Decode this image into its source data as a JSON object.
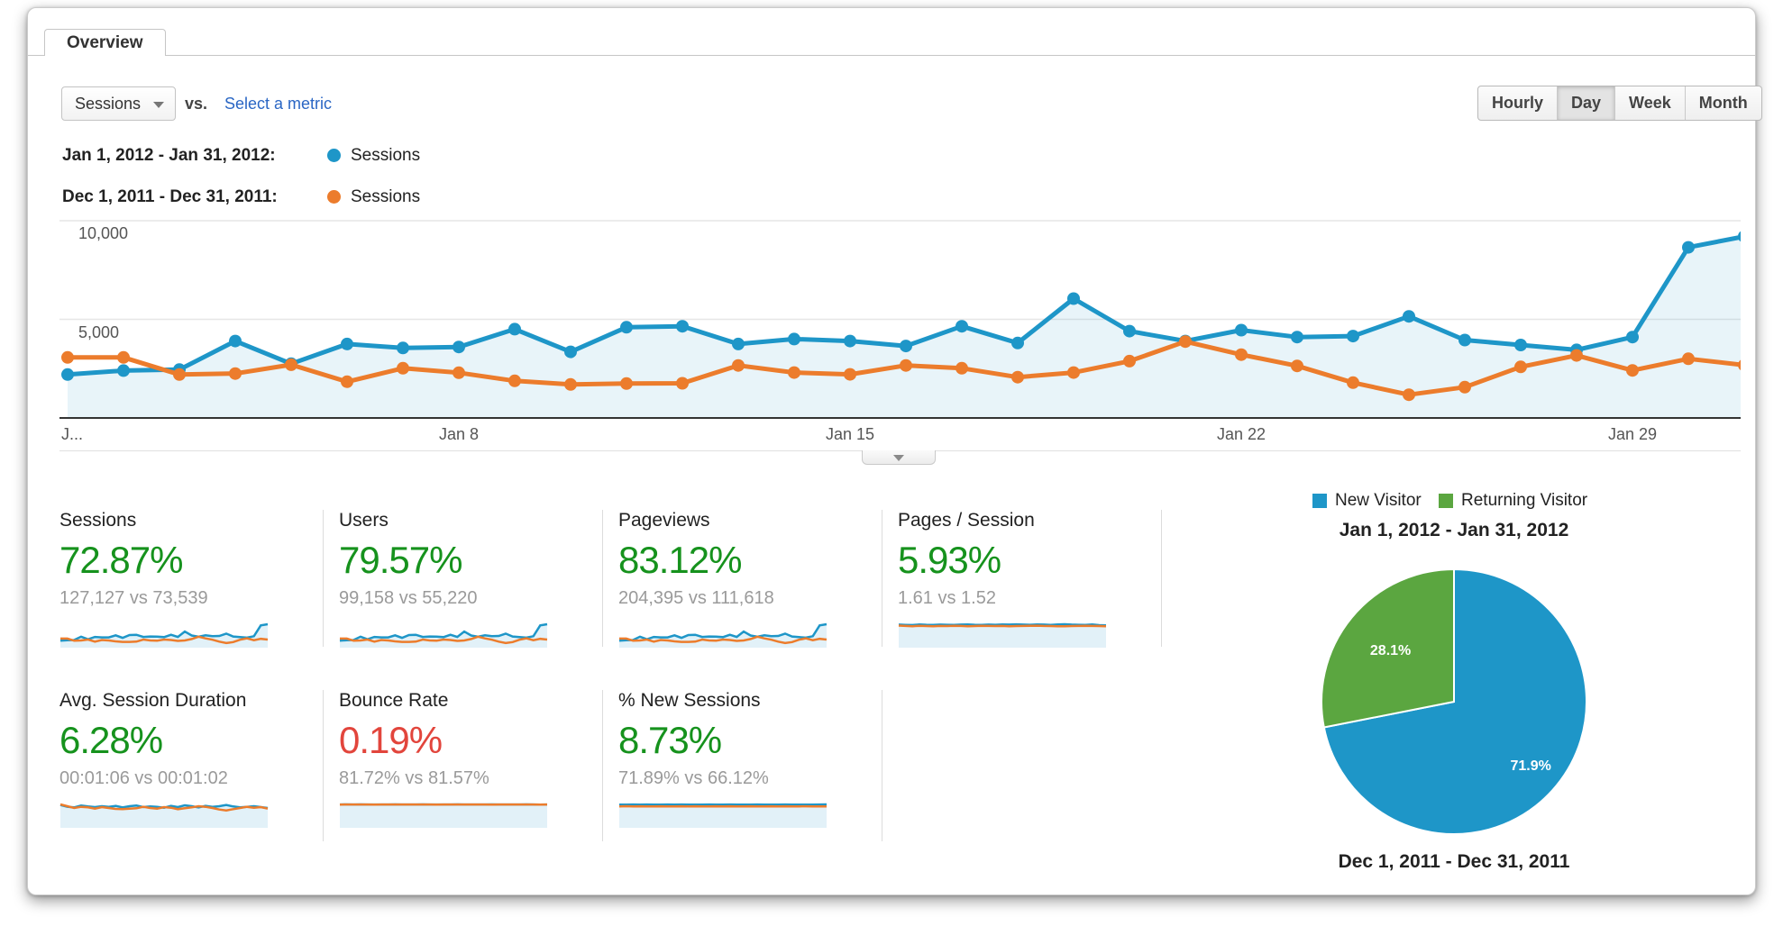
{
  "tab_label": "Overview",
  "toolbar": {
    "metric_selector": "Sessions",
    "vs_label": "vs.",
    "select_metric_label": "Select a metric",
    "granularity": [
      "Hourly",
      "Day",
      "Week",
      "Month"
    ],
    "granularity_selected": "Day"
  },
  "legend_rows": [
    {
      "range": "Jan 1, 2012 - Jan 31, 2012:",
      "metric": "Sessions",
      "color": "#1e96c8"
    },
    {
      "range": "Dec 1, 2011 - Dec 31, 2011:",
      "metric": "Sessions",
      "color": "#ec7c2c"
    }
  ],
  "chart_data": [
    {
      "id": "sessions-timeline",
      "type": "line",
      "title": "Sessions by day, current vs previous period",
      "grid": true,
      "legend_position": "top-left",
      "ylim": [
        0,
        10000
      ],
      "y_ticks": [
        {
          "value": 10000,
          "label": "10,000"
        },
        {
          "value": 5000,
          "label": "5,000"
        }
      ],
      "x_ticks": [
        {
          "day": 1,
          "label": "J..."
        },
        {
          "day": 8,
          "label": "Jan 8"
        },
        {
          "day": 15,
          "label": "Jan 15"
        },
        {
          "day": 22,
          "label": "Jan 22"
        },
        {
          "day": 29,
          "label": "Jan 29"
        }
      ],
      "series": [
        {
          "name": "Jan 1, 2012 - Jan 31, 2012",
          "metric": "Sessions",
          "color": "#1e96c8",
          "fill": "rgba(31,150,200,0.10)",
          "values": [
            2200,
            2400,
            2450,
            3900,
            2750,
            3750,
            3550,
            3600,
            4500,
            3350,
            4600,
            4650,
            3750,
            4000,
            3900,
            3650,
            4650,
            3800,
            6050,
            4400,
            3900,
            4450,
            4100,
            4150,
            5150,
            3950,
            3700,
            3450,
            4100,
            8650,
            9200
          ]
        },
        {
          "name": "Dec 1, 2011 - Dec 31, 2011",
          "metric": "Sessions",
          "color": "#ec7c2c",
          "values": [
            3070,
            3070,
            2200,
            2250,
            2700,
            1835,
            2520,
            2290,
            1880,
            1700,
            1745,
            1760,
            2660,
            2300,
            2210,
            2660,
            2520,
            2070,
            2300,
            2880,
            3870,
            3210,
            2640,
            1790,
            1180,
            1560,
            2590,
            3170,
            2410,
            3000,
            2680
          ]
        }
      ]
    },
    {
      "id": "visitor-type-pie",
      "type": "pie",
      "title": "Jan 1, 2012 - Jan 31, 2012",
      "footer": "Dec 1, 2011 - Dec 31, 2011",
      "labels": [
        "New Visitor",
        "Returning Visitor"
      ],
      "values": [
        71.9,
        28.1
      ],
      "value_labels": [
        "71.9%",
        "28.1%"
      ],
      "colors": [
        "#1e96c8",
        "#5ba640"
      ]
    }
  ],
  "cards": [
    {
      "title": "Sessions",
      "delta": "72.87%",
      "delta_color": "#16921d",
      "comparison": "127,127 vs 73,539",
      "spark": {
        "current": [
          2.2,
          2.4,
          2.5,
          3.9,
          2.8,
          3.8,
          3.6,
          3.6,
          4.5,
          3.4,
          4.6,
          4.7,
          3.8,
          4,
          3.9,
          3.7,
          4.7,
          3.8,
          6.1,
          4.4,
          3.9,
          4.5,
          4.1,
          4.2,
          5.2,
          4,
          3.7,
          3.5,
          4.1,
          8.7,
          9.2
        ],
        "previous": [
          3.1,
          3.1,
          2.2,
          2.3,
          2.7,
          1.8,
          2.5,
          2.3,
          1.9,
          1.7,
          1.7,
          1.8,
          2.7,
          2.3,
          2.2,
          2.7,
          2.5,
          2.1,
          2.3,
          2.9,
          3.9,
          3.2,
          2.6,
          1.8,
          1.2,
          1.6,
          2.6,
          3.2,
          2.4,
          3,
          2.7
        ]
      }
    },
    {
      "title": "Users",
      "delta": "79.57%",
      "delta_color": "#16921d",
      "comparison": "99,158 vs 55,220",
      "spark": {
        "current": [
          2.2,
          2.4,
          2.5,
          3.9,
          2.8,
          3.8,
          3.6,
          3.6,
          4.5,
          3.4,
          4.6,
          4.7,
          3.8,
          4,
          3.9,
          3.7,
          4.7,
          3.8,
          6.1,
          4.4,
          3.9,
          4.5,
          4.1,
          4.2,
          5.2,
          4,
          3.7,
          3.5,
          4.1,
          8.7,
          9.2
        ],
        "previous": [
          3.1,
          3.1,
          2.2,
          2.3,
          2.7,
          1.8,
          2.5,
          2.3,
          1.9,
          1.7,
          1.7,
          1.8,
          2.7,
          2.3,
          2.2,
          2.7,
          2.5,
          2.1,
          2.3,
          2.9,
          3.9,
          3.2,
          2.6,
          1.8,
          1.2,
          1.6,
          2.6,
          3.2,
          2.4,
          3,
          2.7
        ]
      }
    },
    {
      "title": "Pageviews",
      "delta": "83.12%",
      "delta_color": "#16921d",
      "comparison": "204,395 vs 111,618",
      "spark": {
        "current": [
          2.2,
          2.4,
          2.5,
          3.9,
          2.8,
          3.8,
          3.6,
          3.6,
          4.5,
          3.4,
          4.6,
          4.7,
          3.8,
          4,
          3.9,
          3.7,
          4.7,
          3.8,
          6.1,
          4.4,
          3.9,
          4.5,
          4.1,
          4.2,
          5.2,
          4,
          3.7,
          3.5,
          4.1,
          8.7,
          9.2
        ],
        "previous": [
          3.1,
          3.1,
          2.2,
          2.3,
          2.7,
          1.8,
          2.5,
          2.3,
          1.9,
          1.7,
          1.7,
          1.8,
          2.7,
          2.3,
          2.2,
          2.7,
          2.5,
          2.1,
          2.3,
          2.9,
          3.9,
          3.2,
          2.6,
          1.8,
          1.2,
          1.6,
          2.6,
          3.2,
          2.4,
          3,
          2.7
        ]
      }
    },
    {
      "title": "Pages / Session",
      "delta": "5.93%",
      "delta_color": "#16921d",
      "comparison": "1.61 vs 1.52",
      "spark": {
        "current": [
          1.62,
          1.6,
          1.59,
          1.63,
          1.61,
          1.6,
          1.62,
          1.61,
          1.6,
          1.62,
          1.63,
          1.61,
          1.6,
          1.62,
          1.61,
          1.63,
          1.62,
          1.64,
          1.62,
          1.61,
          1.63,
          1.62,
          1.6,
          1.63,
          1.65,
          1.62,
          1.61,
          1.6,
          1.63,
          1.58,
          1.57
        ],
        "previous": [
          1.55,
          1.52,
          1.5,
          1.53,
          1.51,
          1.5,
          1.52,
          1.51,
          1.53,
          1.52,
          1.5,
          1.51,
          1.53,
          1.52,
          1.51,
          1.52,
          1.5,
          1.51,
          1.52,
          1.53,
          1.54,
          1.52,
          1.51,
          1.5,
          1.49,
          1.51,
          1.52,
          1.53,
          1.52,
          1.51,
          1.5
        ]
      }
    },
    {
      "title": "Avg. Session Duration",
      "delta": "6.28%",
      "delta_color": "#16921d",
      "comparison": "00:01:06 vs 00:01:02",
      "spark": {
        "current": [
          70,
          64,
          62,
          68,
          65,
          63,
          66,
          64,
          67,
          62,
          66,
          68,
          63,
          65,
          64,
          61,
          67,
          63,
          69,
          66,
          62,
          67,
          64,
          66,
          70,
          65,
          62,
          64,
          66,
          63,
          60
        ],
        "previous": [
          72,
          66,
          60,
          64,
          62,
          58,
          63,
          60,
          57,
          56,
          58,
          59,
          64,
          60,
          58,
          63,
          61,
          56,
          59,
          62,
          66,
          64,
          60,
          55,
          52,
          56,
          60,
          64,
          61,
          63,
          58
        ]
      }
    },
    {
      "title": "Bounce Rate",
      "delta": "0.19%",
      "delta_color": "#e2453c",
      "comparison": "81.72% vs 81.57%",
      "spark": {
        "current": [
          81.5,
          82,
          81.7,
          81.9,
          81.6,
          81.8,
          81.7,
          81.5,
          81.9,
          81.7,
          81.6,
          81.8,
          82,
          81.7,
          81.5,
          81.8,
          81.6,
          81.9,
          81.7,
          81.8,
          81.6,
          81.7,
          81.9,
          81.5,
          81.8,
          81.7,
          81.6,
          81.9,
          81.7,
          81.4,
          81.8
        ],
        "previous": [
          81.4,
          81.6,
          81.5,
          81.7,
          81.6,
          81.4,
          81.7,
          81.5,
          81.6,
          81.8,
          81.5,
          81.6,
          81.7,
          81.5,
          81.4,
          81.6,
          81.5,
          81.7,
          81.6,
          81.5,
          81.7,
          81.6,
          81.4,
          81.7,
          81.5,
          81.6,
          81.7,
          81.5,
          81.6,
          81.3,
          81.5
        ]
      }
    },
    {
      "title": "% New Sessions",
      "delta": "8.73%",
      "delta_color": "#16921d",
      "comparison": "71.89% vs 66.12%",
      "spark": {
        "current": [
          72,
          71.5,
          72.3,
          71.8,
          72.1,
          71.6,
          72,
          72.2,
          71.7,
          72.1,
          71.9,
          72,
          71.6,
          72.2,
          71.8,
          72,
          72.1,
          71.7,
          72,
          71.9,
          72.2,
          71.8,
          72,
          71.6,
          72.1,
          71.9,
          71.7,
          72,
          71.8,
          72.3,
          72.5
        ],
        "previous": [
          66,
          66.4,
          65.8,
          66.2,
          66,
          65.7,
          66.3,
          66,
          65.8,
          66.1,
          66,
          66.2,
          65.9,
          66,
          66.3,
          65.8,
          66.1,
          66,
          65.9,
          66.2,
          66,
          65.8,
          66.1,
          66,
          66.2,
          65.9,
          66,
          66.1,
          65.8,
          66,
          65.7
        ]
      }
    }
  ],
  "colors": {
    "current_series": "#1e96c8",
    "previous_series": "#ec7c2c",
    "area_fill": "rgba(31,150,200,0.10)",
    "positive_delta": "#16921d",
    "negative_delta": "#e2453c",
    "pie_new_visitor": "#1e96c8",
    "pie_returning_visitor": "#5ba640"
  }
}
